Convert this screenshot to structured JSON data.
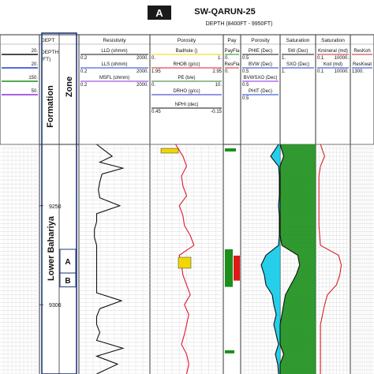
{
  "header": {
    "panel_label": "A",
    "well_name": "SW-QARUN-25",
    "depth_range": "DEPTH (8400FT - 9950FT)"
  },
  "colors": {
    "border": "#333333",
    "formation_box": "#1f3a7a",
    "llD": "#111111",
    "lls": "#1a3fd0",
    "msfl": "#8a2be2",
    "caliper_fill": "#f2d600",
    "rhob": "#e0182d",
    "pe": "#2e7d32",
    "drho": "#2b2bd0",
    "nphi": "#111111",
    "pay_fill": "#1a8f1a",
    "res_fill": "#e01818",
    "porosity_fill": "#00c8e8",
    "sxo_fill": "#f2f200",
    "sw_fill": "#1a8f1a",
    "perm_line": "#d42020"
  },
  "tracks": [
    {
      "id": "gr",
      "header": "",
      "curves": [
        {
          "name": "",
          "left": "",
          "right": "20.",
          "color": "#111111"
        },
        {
          "name": "",
          "left": "",
          "right": "20.",
          "color": "#1a3fd0"
        },
        {
          "name": "",
          "left": "",
          "right": "150.",
          "color": "#1a8f1a"
        },
        {
          "name": "",
          "left": "",
          "right": "50.",
          "color": "#8a2be2"
        }
      ]
    },
    {
      "id": "depth",
      "header": "DEPT",
      "curves": [
        {
          "name": "DEPTH",
          "left": "",
          "right": "",
          "color": "#111111"
        },
        {
          "name": "(FT)",
          "left": "",
          "right": "",
          "color": "#111111"
        }
      ]
    },
    {
      "id": "resistivity",
      "header": "Resistivity",
      "curves": [
        {
          "name": "LLD (ohmm)",
          "left": "0.2",
          "right": "2000.",
          "color": "#111111"
        },
        {
          "name": "LLS (ohmm)",
          "left": "0.2",
          "right": "2000.",
          "color": "#1a3fd0"
        },
        {
          "name": "MSFL (ohmm)",
          "left": "0.2",
          "right": "2000.",
          "color": "#8a2be2"
        }
      ]
    },
    {
      "id": "porosity-logs",
      "header": "Porosity",
      "curves": [
        {
          "name": "Badhole ()",
          "left": "0.",
          "right": "1.",
          "color": "#f2d600"
        },
        {
          "name": "RHOB (g/cc)",
          "left": "1.95",
          "right": "2.95",
          "color": "#e0182d"
        },
        {
          "name": "PE (b/e)",
          "left": "0.",
          "right": "10.",
          "color": "#2e7d32"
        },
        {
          "name": "DRHO (g/cc)",
          "left": "",
          "right": "",
          "color": "#2b2bd0"
        },
        {
          "name": "NPHI (dec)",
          "left": "0.45",
          "right": "-0.15",
          "color": "#111111"
        }
      ]
    },
    {
      "id": "pay",
      "header": "Pay",
      "curves": [
        {
          "name": "PayFla",
          "left": "0.",
          "right": "",
          "color": "#1a8f1a"
        },
        {
          "name": "ResFla",
          "left": "0.",
          "right": "",
          "color": "#e01818"
        }
      ]
    },
    {
      "id": "porosity-eff",
      "header": "Porosity",
      "curves": [
        {
          "name": "PHIE (Dec)",
          "left": "0.5",
          "right": "",
          "color": "#111111"
        },
        {
          "name": "BVW (Dec)",
          "left": "0.5",
          "right": "",
          "color": "#1a3fd0"
        },
        {
          "name": "BVWSXO (Dec)",
          "left": "0.5",
          "right": "",
          "color": "#8a2be2"
        },
        {
          "name": "PHIT (Dec)",
          "left": "0.5",
          "right": "",
          "color": "#1a3fd0"
        }
      ]
    },
    {
      "id": "saturation",
      "header": "Saturation",
      "curves": [
        {
          "name": "SW (Dec)",
          "left": "1.",
          "right": "",
          "color": "#111111"
        },
        {
          "name": "SXO (Dec)",
          "left": "1.",
          "right": "",
          "color": "#1a3fd0"
        }
      ]
    },
    {
      "id": "perm",
      "header": "Saturation",
      "curves": [
        {
          "name": "Kmineral (md)",
          "left": "0.1",
          "right": "10000.",
          "color": "#d42020"
        },
        {
          "name": "Koil (md)",
          "left": "0.1",
          "right": "10000.",
          "color": "#1a3fd0"
        }
      ]
    },
    {
      "id": "reskoh",
      "header": "",
      "curves": [
        {
          "name": "ResKoh",
          "left": "",
          "right": "",
          "color": "#d42020"
        },
        {
          "name": "ResKwat",
          "left": "1300.",
          "right": "",
          "color": "#1a3fd0"
        }
      ]
    }
  ],
  "formation_column": {
    "label": "Formation",
    "value": "Lower Bahariya"
  },
  "zone_column": {
    "label": "Zone",
    "zones": [
      "A",
      "B"
    ]
  },
  "chart_data": {
    "type": "line",
    "title": "SW-QARUN-25",
    "subtitle": "DEPTH (8400FT - 9950FT)",
    "ylabel": "DEPTH (FT)",
    "y_ticks": [
      9250,
      9300
    ],
    "ylim": [
      9219,
      9335
    ],
    "zones": [
      {
        "name": "A",
        "top": 9272,
        "bottom": 9284
      },
      {
        "name": "B",
        "top": 9284,
        "bottom": 9291
      }
    ],
    "series": [
      {
        "name": "LLD",
        "track": "resistivity",
        "scale": "log",
        "range": [
          0.2,
          2000
        ],
        "depth": [
          9219,
          9225,
          9228,
          9231,
          9234,
          9238,
          9242,
          9246,
          9250,
          9254,
          9258,
          9262,
          9266,
          9270,
          9274,
          9278,
          9282,
          9286,
          9290,
          9294,
          9298,
          9302,
          9306,
          9310,
          9314,
          9318,
          9322,
          9326,
          9330,
          9335
        ],
        "values": [
          2,
          15,
          3,
          60,
          4,
          3,
          2.5,
          3,
          40,
          2,
          2,
          1.5,
          1.5,
          2,
          2,
          2,
          2,
          2,
          2,
          2,
          50,
          3,
          2,
          2,
          3,
          2,
          60,
          2,
          30,
          2
        ]
      },
      {
        "name": "RHOB",
        "track": "porosity-logs",
        "range": [
          1.95,
          2.95
        ],
        "depth": [
          9219,
          9225,
          9230,
          9235,
          9240,
          9245,
          9250,
          9255,
          9260,
          9265,
          9270,
          9275,
          9280,
          9285,
          9290,
          9295,
          9300,
          9305,
          9310,
          9315,
          9320,
          9325,
          9330,
          9335
        ],
        "values": [
          2.3,
          2.4,
          2.45,
          2.38,
          2.4,
          2.45,
          2.35,
          2.4,
          2.42,
          2.5,
          2.55,
          2.35,
          2.38,
          2.4,
          2.45,
          2.5,
          2.42,
          2.48,
          2.45,
          2.42,
          2.38,
          2.45,
          2.48,
          2.45
        ]
      },
      {
        "name": "PHIE",
        "track": "porosity-eff",
        "range": [
          0.5,
          0
        ],
        "depth": [
          9219,
          9225,
          9230,
          9235,
          9240,
          9245,
          9250,
          9255,
          9260,
          9265,
          9270,
          9275,
          9280,
          9285,
          9290,
          9295,
          9300,
          9305,
          9310,
          9315,
          9320,
          9325,
          9330,
          9335
        ],
        "values": [
          0.02,
          0.12,
          0.02,
          0.01,
          0.01,
          0.01,
          0.02,
          0.01,
          0.01,
          0.01,
          0.02,
          0.18,
          0.24,
          0.2,
          0.18,
          0.1,
          0.08,
          0.05,
          0.08,
          0.05,
          0.02,
          0.06,
          0.03,
          0.02
        ]
      },
      {
        "name": "SW",
        "track": "saturation",
        "range": [
          1,
          0
        ],
        "depth": [
          9219,
          9225,
          9230,
          9235,
          9240,
          9245,
          9250,
          9255,
          9260,
          9265,
          9270,
          9275,
          9280,
          9285,
          9290,
          9295,
          9300,
          9305,
          9310,
          9315,
          9320,
          9325,
          9330,
          9335
        ],
        "values": [
          1,
          0.9,
          1,
          1,
          1,
          1,
          1,
          1,
          1,
          1,
          0.95,
          0.5,
          0.45,
          0.55,
          0.7,
          0.85,
          0.9,
          0.95,
          1,
          1,
          1,
          0.9,
          1,
          1
        ]
      },
      {
        "name": "Kmineral",
        "track": "perm",
        "scale": "log",
        "range": [
          0.1,
          10000
        ],
        "depth": [
          9219,
          9225,
          9230,
          9235,
          9240,
          9250,
          9260,
          9270,
          9275,
          9280,
          9285,
          9290,
          9295,
          9300,
          9310,
          9320,
          9330,
          9335
        ],
        "values": [
          0.5,
          2,
          0.5,
          0.3,
          0.3,
          0.3,
          0.3,
          0.5,
          200,
          500,
          300,
          100,
          5,
          2,
          0.5,
          0.5,
          0.5,
          0.5
        ]
      }
    ]
  }
}
